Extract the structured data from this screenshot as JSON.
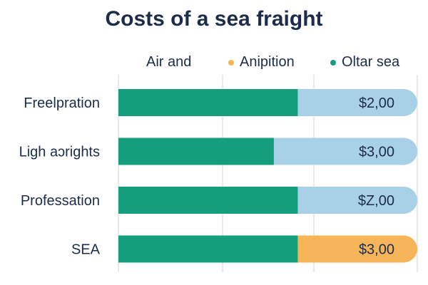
{
  "chart_data": {
    "type": "bar",
    "stacked": true,
    "orientation": "horizontal",
    "title": "Costs of a sea fraight",
    "categories": [
      "Freelpration",
      "Ligh aɔrights",
      "Professation",
      "SEA"
    ],
    "legend": [
      {
        "label": "Air and",
        "color": ""
      },
      {
        "label": "Anipition",
        "color": "#f7b55a"
      },
      {
        "label": "Oltar sea",
        "color": "#149e7c"
      }
    ],
    "series": [
      {
        "name": "Oltar sea",
        "color": "#149e7c",
        "values": [
          60,
          52,
          60,
          60
        ]
      },
      {
        "name": "Anipition",
        "color": "#f7b55a",
        "values": [
          0,
          0,
          0,
          40
        ]
      },
      {
        "name": "Air and",
        "color": "#a8d1e8",
        "values": [
          40,
          48,
          40,
          0
        ]
      }
    ],
    "value_labels": [
      "$2,00",
      "$3,00",
      "$Z,00",
      "$3,00"
    ],
    "xlim": [
      0,
      100
    ],
    "grid": true,
    "legend_position": "top"
  }
}
